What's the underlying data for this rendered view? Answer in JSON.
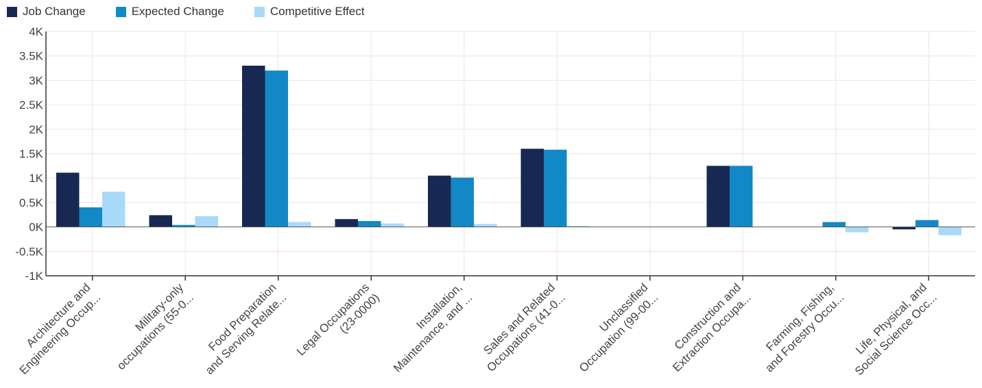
{
  "chart_data": {
    "type": "bar",
    "legend_position": "top-left",
    "grid": true,
    "ylim": [
      -1000,
      4000
    ],
    "y_ticks": [
      {
        "value": -1000,
        "label": "-1K"
      },
      {
        "value": -500,
        "label": "-0.5K"
      },
      {
        "value": 0,
        "label": "0K"
      },
      {
        "value": 500,
        "label": "0.5K"
      },
      {
        "value": 1000,
        "label": "1K"
      },
      {
        "value": 1500,
        "label": "1.5K"
      },
      {
        "value": 2000,
        "label": "2K"
      },
      {
        "value": 2500,
        "label": "2.5K"
      },
      {
        "value": 3000,
        "label": "3K"
      },
      {
        "value": 3500,
        "label": "3.5K"
      },
      {
        "value": 4000,
        "label": "4K"
      }
    ],
    "categories": [
      [
        "Architecture and",
        "Engineering Occup..."
      ],
      [
        "Military-only",
        "occupations (55-0..."
      ],
      [
        "Food Preparation",
        "and Serving Relate..."
      ],
      [
        "Legal Occupations",
        "(23-0000)"
      ],
      [
        "Installation,",
        "Maintenance, and ..."
      ],
      [
        "Sales and Related",
        "Occupations (41-0..."
      ],
      [
        "Unclassified",
        "Occupation (99-00..."
      ],
      [
        "Construction and",
        "Extraction Occupa..."
      ],
      [
        "Farming, Fishing,",
        "and Forestry Occu..."
      ],
      [
        "Life, Physical, and",
        "Social Science Occ..."
      ]
    ],
    "series": [
      {
        "name": "Job Change",
        "color": "#172952",
        "values": [
          1110,
          240,
          3300,
          160,
          1050,
          1600,
          0,
          1250,
          0,
          -50
        ]
      },
      {
        "name": "Expected Change",
        "color": "#1388c6",
        "values": [
          400,
          40,
          3200,
          120,
          1010,
          1580,
          0,
          1250,
          100,
          140
        ]
      },
      {
        "name": "Competitive Effect",
        "color": "#a9d9f8",
        "values": [
          720,
          220,
          100,
          70,
          60,
          20,
          0,
          0,
          -110,
          -170
        ]
      }
    ]
  }
}
